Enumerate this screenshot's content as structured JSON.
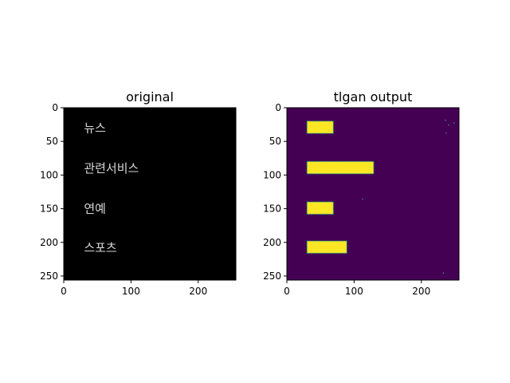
{
  "chart_data": [
    {
      "type": "heatmap",
      "title": "original",
      "xlim": [
        0,
        256
      ],
      "ylim": [
        256,
        0
      ],
      "xticks": [
        0,
        100,
        200
      ],
      "yticks": [
        0,
        50,
        100,
        150,
        200,
        250
      ],
      "background": "#000000",
      "text_color": "#d9d9d9",
      "text_items": [
        {
          "text": "뉴스",
          "x": 30,
          "y": 30
        },
        {
          "text": "관련서비스",
          "x": 30,
          "y": 90
        },
        {
          "text": "연예",
          "x": 30,
          "y": 150
        },
        {
          "text": "스포츠",
          "x": 30,
          "y": 208
        }
      ]
    },
    {
      "type": "heatmap",
      "title": "tlgan output",
      "xlim": [
        0,
        256
      ],
      "ylim": [
        256,
        0
      ],
      "xticks": [
        0,
        100,
        200
      ],
      "yticks": [
        0,
        50,
        100,
        150,
        200,
        250
      ],
      "background": "#440154",
      "blob_color": "#fde725",
      "edge_color": "#35b779",
      "blobs": [
        {
          "x0": 30,
          "x1": 69,
          "y0": 20,
          "y1": 38
        },
        {
          "x0": 30,
          "x1": 129,
          "y0": 80,
          "y1": 98
        },
        {
          "x0": 30,
          "x1": 69,
          "y0": 140,
          "y1": 158
        },
        {
          "x0": 30,
          "x1": 89,
          "y0": 198,
          "y1": 216
        }
      ],
      "specks": [
        {
          "x": 235,
          "y": 18
        },
        {
          "x": 240,
          "y": 25
        },
        {
          "x": 248,
          "y": 22
        },
        {
          "x": 236,
          "y": 37
        },
        {
          "x": 112,
          "y": 135
        },
        {
          "x": 232,
          "y": 245
        }
      ]
    }
  ]
}
